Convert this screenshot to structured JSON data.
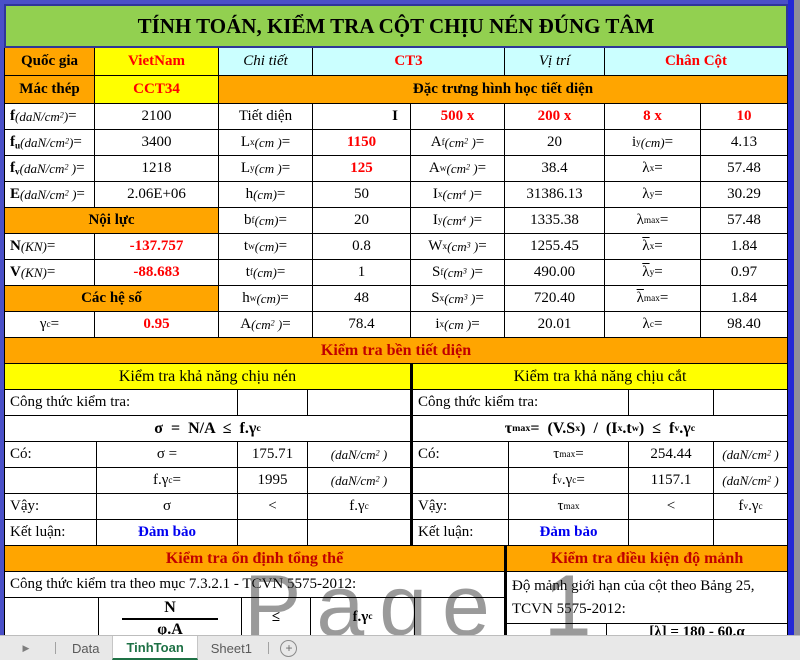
{
  "title": "TÍNH TOÁN, KIỂM TRA CỘT CHỊU NÉN ĐÚNG TÂM",
  "watermark": "Page 1",
  "colors": {
    "title_green": "#92D050",
    "band_orange": "#FFA500",
    "input_yellow": "#FFFF00",
    "info_cyan": "#CBFFFF",
    "value_red": "#FE0000",
    "ok_blue": "#0000F0",
    "section_red": "#C00000",
    "active_tab_green": "#1E7145"
  },
  "meta": {
    "quoc_gia_label": "Quốc gia",
    "quoc_gia": "VietNam",
    "chi_tiet_label": "Chi tiết",
    "chi_tiet": "CT3",
    "vi_tri_label": "Vị trí",
    "vi_tri": "Chân Cột",
    "mac_thep_label": "Mác thép",
    "mac_thep": "CCT34",
    "section_geometry": "Đặc trưng hình học tiết diện"
  },
  "props": [
    [
      "<b>f</b> <i>(daN/cm<sup>2</sup>)</i> =",
      "2100",
      "Tiết diện",
      "I",
      "500  x",
      "200  x",
      "8  x",
      "10"
    ],
    [
      "<b>f<sub>u</sub></b><i>(daN/cm<sup>2</sup>)</i> =",
      "3400",
      "L<sub>x</sub> <i>(cm )</i> =",
      "1150",
      "A<sub>f</sub> <i>(cm<sup>2</sup> )</i> =",
      "20",
      "i<sub>y</sub> <i>(cm)</i> =",
      "4.13"
    ],
    [
      "<b>f<sub>v</sub></b> <i>(daN/cm<sup>2</sup> )</i> =",
      "1218",
      "L<sub>y</sub> <i>(cm )</i> =",
      "125",
      "A<sub>w</sub> <i>(cm<sup>2</sup> )</i> =",
      "38.4",
      "λ<sub>x</sub> =",
      "57.48"
    ],
    [
      "<b>E</b> <i>(daN/cm<sup>2</sup> )</i> =",
      "2.06E+06",
      "h <i>(cm)</i> =",
      "50",
      "I<sub>x</sub> <i>(cm<sup>4</sup> )</i> =",
      "31386.13",
      "λ<sub>y</sub> =",
      "30.29"
    ],
    [
      "Nội lực",
      "b<sub>f</sub> <i>(cm)</i> =",
      "20",
      "I<sub>y</sub> <i>(cm<sup>4</sup> )</i> =",
      "1335.38",
      "λ<sub>max</sub> =",
      "57.48"
    ],
    [
      "<b>N</b> <i>(KN)</i> =",
      "-137.757",
      "t<sub>w</sub> <i>(cm)</i> =",
      "0.8",
      "W<sub>x</sub> <i>(cm<sup>3</sup> )</i> =",
      "1255.45",
      "<span class=\"ov\">λ</span><sub>x</sub> =",
      "1.84"
    ],
    [
      "<b>V</b> <i>(KN)</i> =",
      "-88.683",
      "t<sub>f</sub> <i>(cm)</i> =",
      "1",
      "S<sub>f</sub> <i>(cm<sup>3</sup> )</i> =",
      "490.00",
      "<span class=\"ov\">λ</span><sub>y</sub> =",
      "0.97"
    ],
    [
      "Các hệ số",
      "h<sub>w</sub> <i>(cm)</i> =",
      "48",
      "S<sub>x</sub> <i>(cm<sup>3</sup> )</i> =",
      "720.40",
      "<span class=\"ov\">λ</span><sub>max</sub> =",
      "1.84"
    ],
    [
      "γ<sub>c</sub> =",
      "0.95",
      "A <i>(cm<sup>2</sup> )</i> =",
      "78.4",
      "i<sub>x</sub> <i>(cm )</i> =",
      "20.01",
      "λ<sub>c</sub> =",
      "98.40"
    ]
  ],
  "ben_header": "Kiểm tra bền tiết diện",
  "nen": {
    "header": "Kiểm tra khả năng chịu nén",
    "label": "Công thức kiểm tra:",
    "formula": "σ = N/A ≤ f.γ<sub>c</sub>",
    "rows": [
      [
        "Có:",
        "σ =",
        "175.71",
        "<i>(daN/cm<sup>2</sup> )</i>"
      ],
      [
        "",
        "f.γ<sub>c</sub> =",
        "1995",
        "<i>(daN/cm<sup>2</sup> )</i>"
      ],
      [
        "Vậy:",
        "σ",
        "&lt;",
        "f.γ<sub>c</sub>"
      ],
      [
        "Kết luận:",
        "Đảm bảo",
        "",
        ""
      ]
    ]
  },
  "cat": {
    "header": "Kiểm tra khả năng chịu cắt",
    "label": "Công thức kiểm tra:",
    "formula": "τ<sub>max</sub> = (V.S<sub>x</sub>) / (I<sub>x</sub>.t<sub>w</sub>) ≤ f<sub>v</sub>.γ<sub>c</sub>",
    "rows": [
      [
        "Có:",
        "τ<sub>max</sub> =",
        "254.44",
        "<i>(daN/cm<sup>2</sup> )</i>"
      ],
      [
        "",
        "f<sub>v</sub>.γ<sub>c</sub> =",
        "1157.1",
        "<i>(daN/cm<sup>2</sup> )</i>"
      ],
      [
        "Vậy:",
        "τ<sub>max</sub>",
        "&lt;",
        "f<sub>v</sub>.γ<sub>c</sub>"
      ],
      [
        "Kết luận:",
        "Đảm bảo",
        "",
        ""
      ]
    ]
  },
  "on_dinh": {
    "header": "Kiểm tra ổn định tổng thể",
    "text": "Công thức kiểm tra theo mục 7.3.2.1 - TCVN 5575-2012:",
    "num": "N",
    "den": "φ.A",
    "le": "≤",
    "rhs": "f.γ<sub>c</sub>"
  },
  "do_manh": {
    "header": "Kiểm tra điều kiện độ mảnh",
    "text": "Độ mảnh giới hạn của cột theo Bảng 25, TCVN 5575-2012:",
    "formula": "[λ] = 180 - 60.α"
  },
  "tabs": {
    "nav_arrow": "▶",
    "items": [
      "Data",
      "TinhToan",
      "Sheet1"
    ],
    "active": "TinhToan",
    "add": "+"
  }
}
